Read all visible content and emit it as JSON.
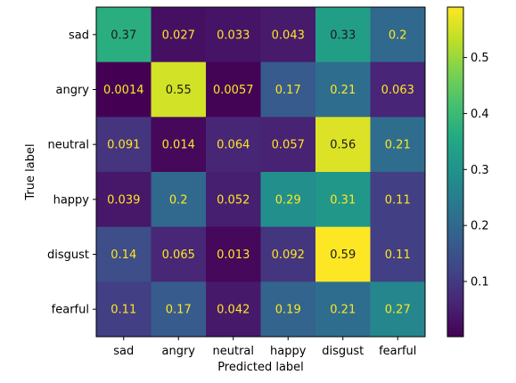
{
  "chart_data": {
    "type": "heatmap",
    "title": "",
    "xlabel": "Predicted label",
    "ylabel": "True label",
    "x_categories": [
      "sad",
      "angry",
      "neutral",
      "happy",
      "disgust",
      "fearful"
    ],
    "y_categories": [
      "sad",
      "angry",
      "neutral",
      "happy",
      "disgust",
      "fearful"
    ],
    "values": [
      [
        0.37,
        0.027,
        0.033,
        0.043,
        0.33,
        0.2
      ],
      [
        0.0014,
        0.55,
        0.0057,
        0.17,
        0.21,
        0.063
      ],
      [
        0.091,
        0.014,
        0.064,
        0.057,
        0.56,
        0.21
      ],
      [
        0.039,
        0.2,
        0.052,
        0.29,
        0.31,
        0.11
      ],
      [
        0.14,
        0.065,
        0.013,
        0.092,
        0.59,
        0.11
      ],
      [
        0.11,
        0.17,
        0.042,
        0.19,
        0.21,
        0.27
      ]
    ],
    "colormap": "viridis",
    "colorbar": {
      "min": 0.0014,
      "max": 0.59,
      "ticks": [
        "0.1",
        "0.2",
        "0.3",
        "0.4",
        "0.5"
      ]
    },
    "grid": false
  }
}
